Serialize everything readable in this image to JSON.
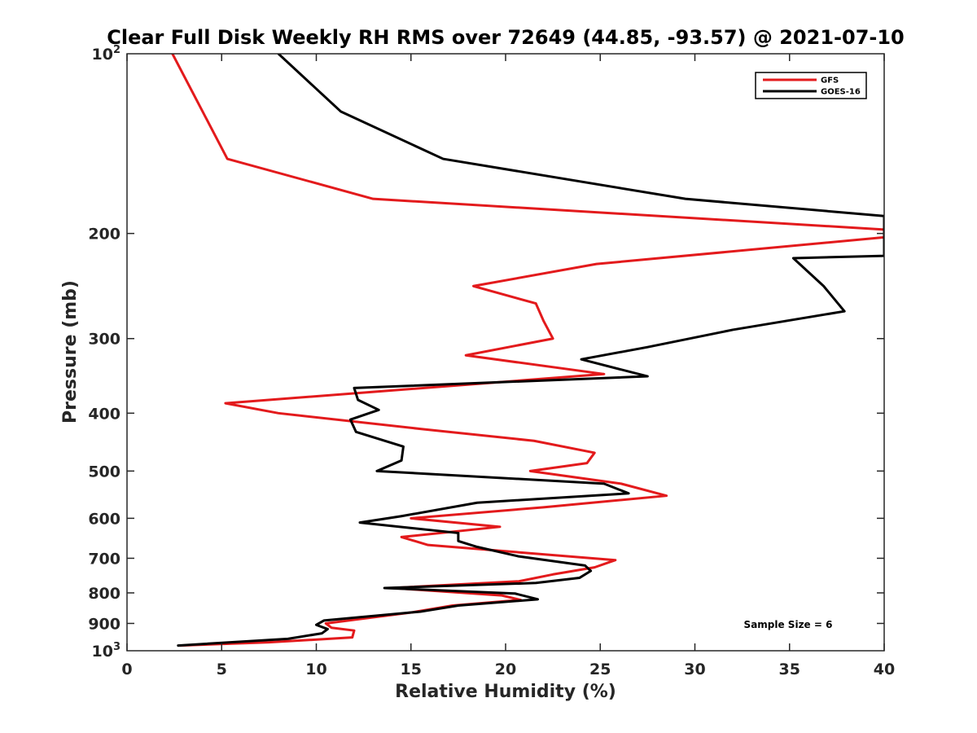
{
  "chart_data": {
    "type": "line",
    "title": "Clear Full Disk Weekly RH RMS over 72649 (44.85, -93.57) @ 2021-07-10",
    "xlabel": "Relative Humidity (%)",
    "ylabel": "Pressure (mb)",
    "xlim": [
      0,
      40
    ],
    "ylim": [
      100,
      1000
    ],
    "yscale": "log",
    "y_reversed": true,
    "x_ticks": [
      0,
      5,
      10,
      15,
      20,
      25,
      30,
      35,
      40
    ],
    "x_tick_labels": [
      "0",
      "5",
      "10",
      "15",
      "20",
      "25",
      "30",
      "35",
      "40"
    ],
    "y_ticks": [
      200,
      300,
      400,
      500,
      600,
      700,
      800,
      900
    ],
    "y_tick_labels": [
      "200",
      "300",
      "400",
      "500",
      "600",
      "700",
      "800",
      "900"
    ],
    "y_edge_labels": [
      {
        "value": 100,
        "base": "10",
        "exp": "2"
      },
      {
        "value": 1000,
        "base": "10",
        "exp": "3"
      }
    ],
    "grid": false,
    "legend_position": "top-right",
    "annotation": "Sample Size = 6",
    "series": [
      {
        "name": "GFS",
        "color": "#e31a1c",
        "points": [
          [
            2.4,
            100
          ],
          [
            5.3,
            150
          ],
          [
            13.0,
            175
          ],
          [
            40.0,
            197
          ],
          [
            40.0,
            203
          ],
          [
            24.8,
            225
          ],
          [
            18.3,
            245
          ],
          [
            21.6,
            262
          ],
          [
            22.0,
            280
          ],
          [
            22.5,
            300
          ],
          [
            17.9,
            320
          ],
          [
            25.2,
            344
          ],
          [
            5.2,
            385
          ],
          [
            8.0,
            400
          ],
          [
            15.5,
            425
          ],
          [
            21.5,
            445
          ],
          [
            24.7,
            466
          ],
          [
            24.3,
            485
          ],
          [
            21.3,
            500
          ],
          [
            26.1,
            525
          ],
          [
            28.5,
            550
          ],
          [
            22.0,
            575
          ],
          [
            15.0,
            600
          ],
          [
            19.7,
            620
          ],
          [
            14.5,
            645
          ],
          [
            15.9,
            665
          ],
          [
            25.8,
            705
          ],
          [
            24.7,
            725
          ],
          [
            22.5,
            745
          ],
          [
            20.7,
            765
          ],
          [
            14.0,
            785
          ],
          [
            19.8,
            808
          ],
          [
            20.8,
            822
          ],
          [
            17.2,
            840
          ],
          [
            15.1,
            862
          ],
          [
            10.5,
            900
          ],
          [
            10.8,
            915
          ],
          [
            12.0,
            925
          ],
          [
            11.9,
            950
          ],
          [
            7.5,
            968
          ],
          [
            2.8,
            980
          ]
        ]
      },
      {
        "name": "GOES-16",
        "color": "#000000",
        "points": [
          [
            8.0,
            100
          ],
          [
            11.3,
            125
          ],
          [
            16.7,
            150
          ],
          [
            29.5,
            175
          ],
          [
            40.0,
            187
          ],
          [
            40.0,
            218
          ],
          [
            35.2,
            220
          ],
          [
            36.8,
            245
          ],
          [
            37.9,
            270
          ],
          [
            32.0,
            290
          ],
          [
            27.5,
            310
          ],
          [
            24.0,
            325
          ],
          [
            27.5,
            347
          ],
          [
            12.0,
            363
          ],
          [
            12.2,
            380
          ],
          [
            13.3,
            395
          ],
          [
            11.8,
            410
          ],
          [
            12.1,
            430
          ],
          [
            14.6,
            455
          ],
          [
            14.5,
            480
          ],
          [
            13.2,
            500
          ],
          [
            25.2,
            525
          ],
          [
            26.5,
            545
          ],
          [
            18.5,
            565
          ],
          [
            14.5,
            595
          ],
          [
            12.3,
            610
          ],
          [
            17.5,
            635
          ],
          [
            17.5,
            655
          ],
          [
            18.5,
            670
          ],
          [
            20.7,
            695
          ],
          [
            24.2,
            720
          ],
          [
            24.5,
            735
          ],
          [
            23.9,
            755
          ],
          [
            21.6,
            770
          ],
          [
            13.6,
            785
          ],
          [
            20.5,
            802
          ],
          [
            21.7,
            820
          ],
          [
            17.5,
            840
          ],
          [
            15.5,
            860
          ],
          [
            10.4,
            890
          ],
          [
            10.0,
            905
          ],
          [
            10.6,
            920
          ],
          [
            10.3,
            935
          ],
          [
            8.5,
            955
          ],
          [
            2.7,
            980
          ]
        ]
      }
    ]
  }
}
